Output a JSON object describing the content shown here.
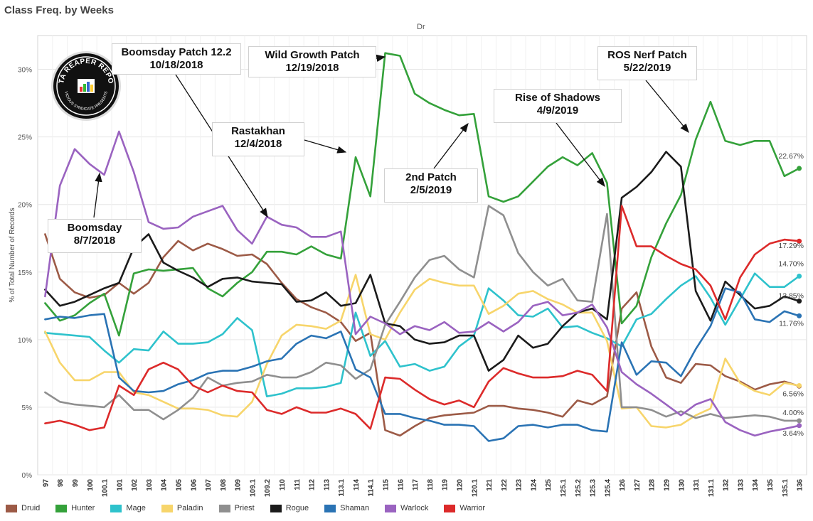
{
  "title": "Class Freq. by Weeks",
  "top_label": "Dr",
  "colors": {
    "Druid": "#9c5a46",
    "Hunter": "#34a13a",
    "Mage": "#2ec2cc",
    "Paladin": "#f7d56b",
    "Priest": "#8f8f8f",
    "Rogue": "#1b1b1b",
    "Shaman": "#2a73b4",
    "Warlock": "#9a63c0",
    "Warrior": "#dc2a2a"
  },
  "logo": {
    "text_top": "DATA REAPER REPORT",
    "text_bottom": "VICIOUS SYNDICATE PRESENTS"
  },
  "annotations": [
    {
      "id": "boomsday",
      "lines": [
        "Boomsday",
        "8/7/2018"
      ]
    },
    {
      "id": "patch122",
      "lines": [
        "Boomsday Patch 12.2",
        "10/18/2018"
      ]
    },
    {
      "id": "wildgrowth",
      "lines": [
        "Wild Growth Patch",
        "12/19/2018"
      ]
    },
    {
      "id": "rastakhan",
      "lines": [
        "Rastakhan",
        "12/4/2018"
      ]
    },
    {
      "id": "patch2",
      "lines": [
        "2nd Patch",
        "2/5/2019"
      ]
    },
    {
      "id": "ros",
      "lines": [
        "Rise of Shadows",
        "4/9/2019"
      ]
    },
    {
      "id": "rosnerf",
      "lines": [
        "ROS Nerf Patch",
        "5/22/2019"
      ]
    }
  ],
  "chart_data": {
    "type": "line",
    "title": "Class Freq. by Weeks",
    "xlabel": "",
    "ylabel": "% of Total Number of Records",
    "ylim": [
      0,
      32.5
    ],
    "yticks": [
      "0%",
      "5%",
      "10%",
      "15%",
      "20%",
      "25%",
      "30%"
    ],
    "grid": true,
    "legend_position": "bottom",
    "categories": [
      "97",
      "98",
      "99",
      "100",
      "100.1",
      "101",
      "102",
      "103",
      "104",
      "105",
      "106",
      "107",
      "108",
      "109",
      "109.1",
      "109.2",
      "110",
      "111",
      "112",
      "113",
      "113.1",
      "114",
      "114.1",
      "115",
      "116",
      "117",
      "118",
      "119",
      "120",
      "120.1",
      "121",
      "122",
      "123",
      "124",
      "125",
      "125.1",
      "125.2",
      "125.3",
      "125.4",
      "126",
      "127",
      "128",
      "129",
      "130",
      "131",
      "131.1",
      "132",
      "133",
      "134",
      "135",
      "135.1",
      "136"
    ],
    "series": [
      {
        "name": "Druid",
        "end_label": "6.56%",
        "values": [
          17.8,
          14.5,
          13.5,
          13.1,
          13.3,
          14.2,
          13.4,
          14.2,
          16.1,
          17.3,
          16.6,
          17.1,
          16.7,
          16.2,
          16.3,
          15.6,
          14.2,
          13.0,
          12.4,
          12.0,
          11.3,
          9.9,
          10.5,
          3.3,
          2.9,
          3.6,
          4.2,
          4.4,
          4.5,
          4.6,
          5.1,
          5.1,
          4.9,
          4.8,
          4.6,
          4.3,
          5.5,
          5.2,
          5.8,
          12.3,
          13.5,
          9.5,
          7.2,
          6.8,
          8.2,
          8.1,
          7.3,
          6.9,
          6.3,
          6.7,
          6.9,
          6.56
        ]
      },
      {
        "name": "Hunter",
        "end_label": "22.67%",
        "values": [
          12.7,
          11.4,
          11.8,
          12.7,
          13.4,
          10.3,
          14.9,
          15.2,
          15.1,
          15.2,
          15.3,
          13.8,
          13.2,
          14.2,
          15.0,
          16.5,
          16.5,
          16.3,
          16.9,
          16.3,
          16.0,
          23.5,
          20.6,
          31.2,
          31.0,
          28.2,
          27.5,
          27.0,
          26.6,
          26.7,
          20.6,
          20.2,
          20.6,
          21.7,
          22.8,
          23.5,
          22.9,
          23.8,
          21.6,
          11.2,
          12.5,
          16.1,
          18.6,
          20.7,
          24.8,
          27.6,
          24.7,
          24.4,
          24.7,
          24.7,
          22.1,
          22.67
        ]
      },
      {
        "name": "Mage",
        "end_label": "14.70%",
        "values": [
          10.5,
          10.4,
          10.3,
          10.2,
          9.2,
          8.3,
          9.3,
          9.2,
          10.6,
          9.7,
          9.7,
          9.8,
          10.4,
          11.6,
          10.7,
          5.8,
          6.0,
          6.4,
          6.4,
          6.5,
          6.8,
          12.0,
          8.8,
          9.9,
          8.0,
          8.2,
          7.7,
          8.0,
          9.5,
          10.3,
          13.8,
          12.9,
          11.8,
          11.7,
          12.3,
          10.9,
          11.0,
          10.5,
          10.1,
          9.5,
          11.5,
          11.9,
          13.0,
          14.0,
          14.7,
          13.1,
          11.1,
          13.0,
          14.9,
          13.9,
          13.9,
          14.7
        ]
      },
      {
        "name": "Paladin",
        "end_label": "",
        "values": [
          10.6,
          8.3,
          7.0,
          7.0,
          7.6,
          7.6,
          6.1,
          5.9,
          5.4,
          4.9,
          4.9,
          4.8,
          4.4,
          4.3,
          5.4,
          8.2,
          10.3,
          11.1,
          11.0,
          10.8,
          11.4,
          14.8,
          10.4,
          10.0,
          12.0,
          13.7,
          14.5,
          14.2,
          14.0,
          14.0,
          11.9,
          12.5,
          13.4,
          13.6,
          13.0,
          12.6,
          12.0,
          12.0,
          9.9,
          4.9,
          5.0,
          3.6,
          3.5,
          3.7,
          4.4,
          4.9,
          8.6,
          6.8,
          6.2,
          5.9,
          6.8,
          6.6
        ]
      },
      {
        "name": "Priest",
        "end_label": "4.00%",
        "values": [
          6.1,
          5.4,
          5.2,
          5.1,
          5.0,
          5.9,
          4.8,
          4.8,
          4.1,
          4.8,
          5.7,
          7.2,
          6.6,
          6.8,
          6.9,
          7.4,
          7.2,
          7.2,
          7.6,
          8.3,
          8.1,
          7.1,
          7.8,
          11.1,
          12.8,
          14.6,
          15.9,
          16.2,
          15.2,
          14.6,
          19.9,
          19.2,
          16.4,
          15.0,
          14.0,
          14.5,
          12.9,
          12.8,
          19.3,
          5.0,
          5.0,
          4.8,
          4.3,
          4.7,
          4.2,
          4.5,
          4.2,
          4.3,
          4.4,
          4.3,
          4.0,
          4.0
        ]
      },
      {
        "name": "Rogue",
        "end_label": "12.85%",
        "values": [
          13.7,
          12.5,
          12.8,
          13.3,
          13.8,
          14.2,
          16.8,
          17.8,
          15.7,
          15.1,
          14.6,
          13.9,
          14.5,
          14.6,
          14.3,
          14.2,
          14.1,
          12.8,
          12.9,
          13.5,
          12.5,
          12.7,
          14.8,
          11.2,
          11.0,
          10.0,
          9.7,
          9.8,
          10.3,
          10.3,
          7.7,
          8.5,
          10.3,
          9.4,
          9.7,
          11.0,
          12.0,
          12.3,
          11.5,
          20.5,
          21.3,
          22.4,
          23.9,
          22.8,
          13.6,
          11.4,
          14.3,
          13.3,
          12.3,
          12.5,
          13.2,
          12.85
        ]
      },
      {
        "name": "Shaman",
        "end_label": "11.76%",
        "values": [
          11.5,
          11.7,
          11.6,
          11.8,
          11.9,
          7.2,
          6.2,
          6.1,
          6.2,
          6.7,
          7.0,
          7.5,
          7.7,
          7.7,
          8.0,
          8.4,
          8.6,
          9.7,
          10.3,
          10.1,
          10.6,
          7.8,
          7.2,
          4.5,
          4.5,
          4.2,
          4.0,
          3.7,
          3.7,
          3.6,
          2.5,
          2.7,
          3.6,
          3.7,
          3.5,
          3.7,
          3.7,
          3.3,
          3.2,
          9.8,
          7.4,
          8.4,
          8.3,
          7.3,
          9.3,
          11.0,
          13.8,
          13.5,
          11.5,
          11.3,
          12.1,
          11.76
        ]
      },
      {
        "name": "Warlock",
        "end_label": "3.64%",
        "values": [
          13.2,
          21.4,
          24.1,
          23.0,
          22.2,
          25.4,
          22.4,
          18.7,
          18.2,
          18.3,
          19.1,
          19.5,
          19.9,
          18.1,
          17.1,
          19.1,
          18.5,
          18.3,
          17.6,
          17.6,
          18.0,
          10.4,
          11.7,
          11.2,
          10.4,
          11.0,
          10.7,
          11.3,
          10.5,
          10.6,
          11.3,
          10.6,
          11.3,
          12.5,
          12.8,
          11.8,
          12.0,
          12.6,
          10.9,
          7.6,
          6.7,
          6.0,
          5.2,
          4.4,
          5.2,
          5.6,
          3.9,
          3.3,
          2.9,
          3.2,
          3.4,
          3.64
        ]
      },
      {
        "name": "Warrior",
        "end_label": "17.29%",
        "values": [
          3.8,
          4.0,
          3.7,
          3.3,
          3.5,
          6.6,
          5.9,
          7.8,
          8.3,
          7.8,
          6.6,
          6.1,
          6.6,
          6.2,
          6.1,
          4.8,
          4.5,
          5.0,
          4.6,
          4.6,
          4.9,
          4.5,
          3.4,
          7.2,
          7.1,
          6.3,
          5.6,
          5.2,
          5.5,
          5.0,
          6.9,
          7.9,
          7.5,
          7.2,
          7.2,
          7.3,
          7.7,
          7.4,
          6.2,
          19.9,
          16.9,
          16.9,
          16.2,
          15.6,
          15.2,
          14.0,
          11.5,
          14.6,
          16.3,
          17.1,
          17.4,
          17.29
        ]
      }
    ]
  }
}
